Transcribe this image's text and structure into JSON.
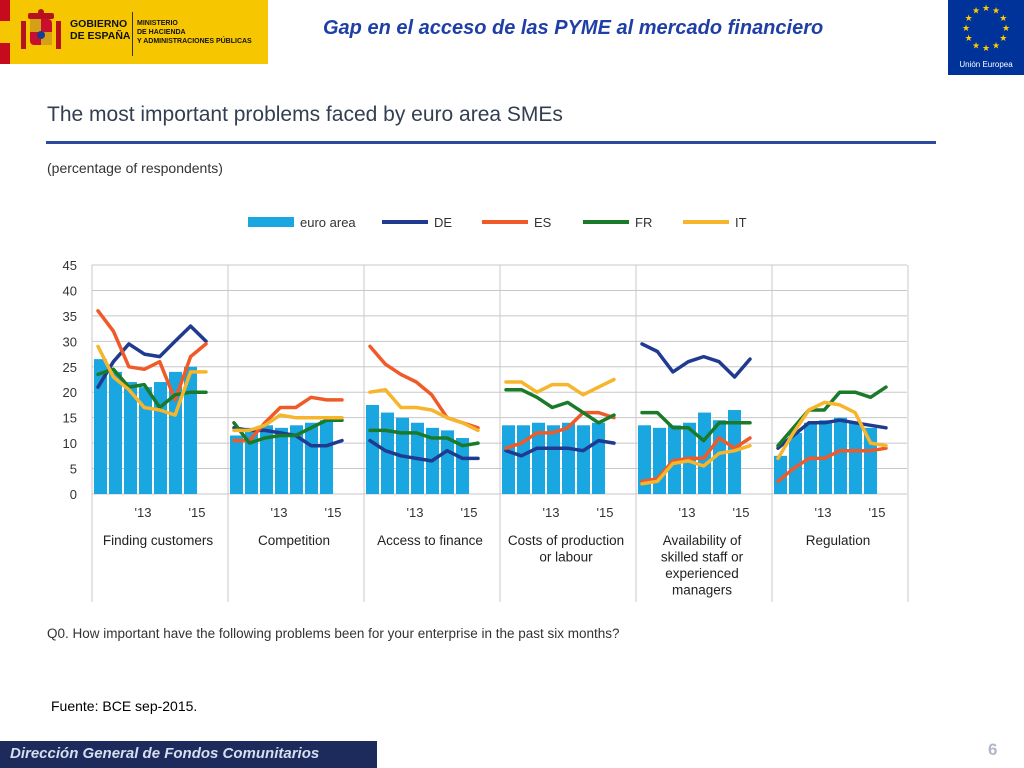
{
  "header": {
    "gov_line1": "GOBIERNO",
    "gov_line2": "DE ESPAÑA",
    "ministry_line1": "MINISTERIO",
    "ministry_line2": "DE HACIENDA",
    "ministry_line3": "Y ADMINISTRACIONES PÚBLICAS",
    "title": "Gap en el acceso de las PYME al mercado financiero",
    "eu_label": "Unión Europea"
  },
  "colors": {
    "euro_area": "#1aa6e0",
    "DE": "#1f3a8f",
    "ES": "#f05a28",
    "FR": "#1a7a2a",
    "IT": "#f7b52c",
    "grid": "#c8c8c8"
  },
  "chart_data": {
    "type": "bar+line",
    "title": "The most important problems faced by euro area SMEs",
    "subtitle": "(percentage of respondents)",
    "ylim": [
      0,
      45
    ],
    "yticks": [
      0,
      5,
      10,
      15,
      20,
      25,
      30,
      35,
      40,
      45
    ],
    "xtick_labels": [
      "'13",
      "'15"
    ],
    "legend": [
      "euro area",
      "DE",
      "ES",
      "FR",
      "IT"
    ],
    "panels": [
      {
        "label": "Finding customers",
        "euro_area": [
          26.5,
          24,
          22,
          21,
          22,
          24,
          25
        ],
        "DE": [
          21,
          26,
          29.5,
          27.5,
          27,
          30,
          33,
          30
        ],
        "ES": [
          36,
          32,
          25,
          24.5,
          26,
          18.5,
          27,
          29.5
        ],
        "FR": [
          23.5,
          24.5,
          21,
          21.5,
          17,
          19.5,
          20,
          20
        ],
        "IT": [
          29,
          23,
          20.5,
          17,
          16.5,
          15.5,
          24,
          24
        ]
      },
      {
        "label": "Competition",
        "euro_area": [
          11.5,
          13,
          13.5,
          13,
          13.5,
          14,
          14.5
        ],
        "DE": [
          13,
          12.5,
          12.5,
          12,
          11.5,
          9.5,
          9.5,
          10.5
        ],
        "ES": [
          10.5,
          10.5,
          14,
          17,
          17,
          19,
          18.5,
          18.5
        ],
        "FR": [
          14,
          10,
          11,
          11.5,
          11.5,
          13,
          14.5,
          14.5
        ],
        "IT": [
          12.5,
          12.5,
          13.5,
          15.5,
          15,
          15,
          15,
          15
        ]
      },
      {
        "label": "Access to finance",
        "euro_area": [
          17.5,
          16,
          15,
          14,
          13,
          12.5,
          11
        ],
        "DE": [
          10.5,
          8.5,
          7.5,
          7,
          6.5,
          8.5,
          7,
          7
        ],
        "ES": [
          29,
          25.5,
          23.5,
          22,
          19.5,
          15,
          14,
          13
        ],
        "FR": [
          12.5,
          12.5,
          12,
          12,
          11,
          11,
          9.5,
          10
        ],
        "IT": [
          20,
          20.5,
          17,
          17,
          16.5,
          15,
          14,
          12.5
        ]
      },
      {
        "label": "Costs of production or labour",
        "euro_area": [
          13.5,
          13.5,
          14,
          13.5,
          14,
          13.5,
          14
        ],
        "DE": [
          8.5,
          7.5,
          9,
          9,
          9,
          8.5,
          10.5,
          10
        ],
        "ES": [
          9,
          10,
          12,
          12,
          13,
          16,
          16,
          15
        ],
        "FR": [
          20.5,
          20.5,
          19,
          17,
          18,
          16,
          14,
          15.5
        ],
        "IT": [
          22,
          22,
          20,
          21.5,
          21.5,
          19.5,
          21,
          22.5
        ]
      },
      {
        "label": "Availability of skilled staff or experienced managers",
        "euro_area": [
          13.5,
          13,
          13.5,
          14,
          16,
          14.5,
          16.5
        ],
        "DE": [
          29.5,
          28,
          24,
          26,
          27,
          26,
          23,
          26.5
        ],
        "ES": [
          2.5,
          3,
          6.5,
          7,
          7,
          11,
          9,
          11
        ],
        "FR": [
          16,
          16,
          13,
          13,
          10.5,
          14,
          14,
          14
        ],
        "IT": [
          2,
          2.5,
          6,
          6.5,
          5.5,
          8,
          8.5,
          9.5
        ]
      },
      {
        "label": "Regulation",
        "euro_area": [
          7.5,
          12,
          14,
          14.5,
          15,
          14,
          13
        ],
        "DE": [
          9,
          11.5,
          14,
          14,
          14.5,
          14,
          13.5,
          13
        ],
        "ES": [
          2.5,
          5,
          7,
          7,
          8.5,
          8.5,
          8.5,
          9
        ],
        "FR": [
          9.5,
          13,
          16.5,
          16.5,
          20,
          20,
          19,
          21
        ],
        "IT": [
          7,
          12,
          16.5,
          18,
          17.5,
          16,
          10,
          9.5
        ]
      }
    ],
    "question": "Q0. How important have the following problems been for your enterprise in the past six months?"
  },
  "source": "Fuente: BCE sep-2015.",
  "footer": {
    "org": "Dirección General de Fondos Comunitarios",
    "page": "6"
  }
}
